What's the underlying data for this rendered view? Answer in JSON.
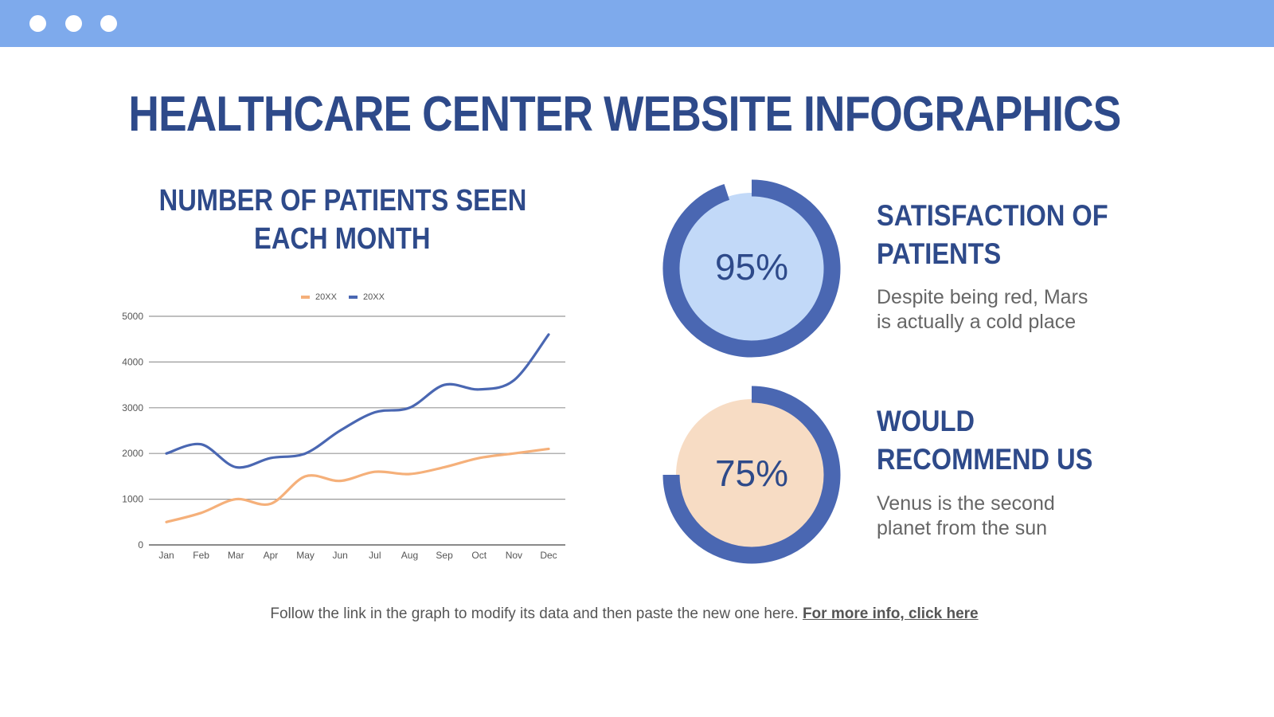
{
  "window": {
    "controls": [
      "dot",
      "dot",
      "dot"
    ],
    "bar_color": "#7eaaec"
  },
  "title": "HEALTHCARE CENTER WEBSITE INFOGRAPHICS",
  "chart_title_line1": "NUMBER OF PATIENTS SEEN",
  "chart_title_line2": "EACH MONTH",
  "chart_data": {
    "type": "line",
    "title": "",
    "xlabel": "",
    "ylabel": "",
    "categories": [
      "Jan",
      "Feb",
      "Mar",
      "Apr",
      "May",
      "Jun",
      "Jul",
      "Aug",
      "Sep",
      "Oct",
      "Nov",
      "Dec"
    ],
    "ylim": [
      0,
      5000
    ],
    "yticks": [
      "0",
      "1000",
      "2000",
      "3000",
      "4000",
      "5000"
    ],
    "grid": true,
    "legend": "top",
    "smooth": true,
    "series": [
      {
        "name": "20XX",
        "color": "#f5b07a",
        "values": [
          500,
          700,
          1000,
          900,
          1500,
          1400,
          1600,
          1550,
          1700,
          1900,
          2000,
          2100
        ]
      },
      {
        "name": "20XX",
        "color": "#4a67b2",
        "values": [
          2000,
          2200,
          1700,
          1900,
          2000,
          2500,
          2900,
          3000,
          3500,
          3400,
          3600,
          4600
        ]
      }
    ]
  },
  "stats": [
    {
      "value": 95,
      "label": "95%",
      "heading_line1": "SATISFACTION OF",
      "heading_line2": "PATIENTS",
      "text_line1": "Despite being red, Mars",
      "text_line2": "is actually a cold place",
      "fill": "#c2d9f8",
      "ring": "#4a67b2"
    },
    {
      "value": 75,
      "label": "75%",
      "heading_line1": "WOULD",
      "heading_line2": "RECOMMEND US",
      "text_line1": "Venus is the second",
      "text_line2": "planet from the sun",
      "fill": "#f7dcc4",
      "ring": "#4a67b2"
    }
  ],
  "footer": {
    "text": "Follow the link in the graph to modify its data and then paste the new one here. ",
    "link": "For more info, click here"
  }
}
